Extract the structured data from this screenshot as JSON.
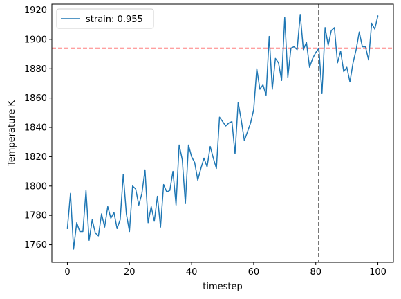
{
  "chart_data": {
    "type": "line",
    "title": "",
    "xlabel": "timestep",
    "ylabel": "Temperature K",
    "xlim": [
      -5,
      105
    ],
    "ylim": [
      1748,
      1924
    ],
    "xticks": [
      0,
      20,
      40,
      60,
      80,
      100
    ],
    "yticks": [
      1760,
      1780,
      1800,
      1820,
      1840,
      1860,
      1880,
      1900,
      1920
    ],
    "grid": false,
    "legend": "upper left",
    "series": [
      {
        "name": "strain: 0.955",
        "color": "#1f77b4",
        "x": [
          0,
          1,
          2,
          3,
          4,
          5,
          6,
          7,
          8,
          9,
          10,
          11,
          12,
          13,
          14,
          15,
          16,
          17,
          18,
          19,
          20,
          21,
          22,
          23,
          24,
          25,
          26,
          27,
          28,
          29,
          30,
          31,
          32,
          33,
          34,
          35,
          36,
          37,
          38,
          39,
          40,
          41,
          42,
          43,
          44,
          45,
          46,
          47,
          48,
          49,
          50,
          51,
          52,
          53,
          54,
          55,
          56,
          57,
          58,
          59,
          60,
          61,
          62,
          63,
          64,
          65,
          66,
          67,
          68,
          69,
          70,
          71,
          72,
          73,
          74,
          75,
          76,
          77,
          78,
          79,
          80,
          81,
          82,
          83,
          84,
          85,
          86,
          87,
          88,
          89,
          90,
          91,
          92,
          93,
          94,
          95,
          96,
          97,
          98,
          99,
          100
        ],
        "y": [
          1771,
          1795,
          1757,
          1775,
          1769,
          1769,
          1797,
          1763,
          1777,
          1768,
          1766,
          1781,
          1772,
          1786,
          1778,
          1782,
          1771,
          1777,
          1808,
          1781,
          1769,
          1800,
          1798,
          1787,
          1795,
          1811,
          1775,
          1786,
          1776,
          1793,
          1772,
          1801,
          1796,
          1797,
          1810,
          1787,
          1828,
          1818,
          1788,
          1828,
          1820,
          1816,
          1804,
          1812,
          1819,
          1813,
          1827,
          1819,
          1812,
          1847,
          1844,
          1841,
          1843,
          1844,
          1822,
          1857,
          1845,
          1831,
          1837,
          1843,
          1852,
          1880,
          1866,
          1869,
          1862,
          1902,
          1866,
          1887,
          1884,
          1872,
          1915,
          1874,
          1894,
          1895,
          1893,
          1917,
          1893,
          1898,
          1881,
          1887,
          1891,
          1894,
          1863,
          1908,
          1896,
          1906,
          1908,
          1884,
          1892,
          1878,
          1881,
          1871,
          1884,
          1893,
          1905,
          1895,
          1895,
          1886,
          1911,
          1907,
          1916
        ]
      }
    ],
    "reference_lines": [
      {
        "orientation": "horizontal",
        "value": 1894,
        "color": "#ff0000",
        "style": "dashed"
      },
      {
        "orientation": "vertical",
        "value": 81,
        "color": "#000000",
        "style": "dashed"
      }
    ]
  }
}
